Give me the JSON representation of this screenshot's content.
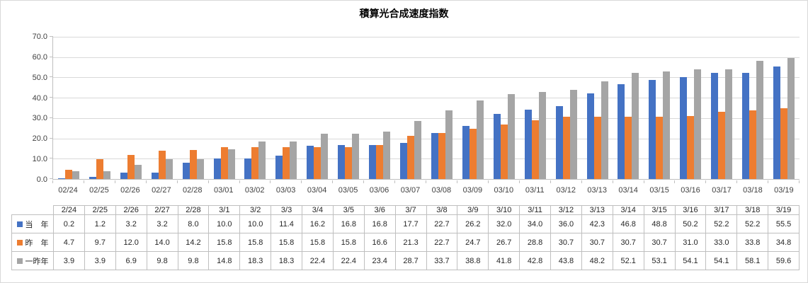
{
  "chart_data": {
    "type": "bar",
    "title": "積算光合成速度指数",
    "xlabel": "",
    "ylabel": "",
    "ylim": [
      0,
      70
    ],
    "y_tick_step": 10,
    "y_tick_labels": [
      "70.0",
      "60.0",
      "50.0",
      "40.0",
      "30.0",
      "20.0",
      "10.0",
      "0.0"
    ],
    "grid": true,
    "legend_position": "data-table-left",
    "categories": [
      "02/24",
      "02/25",
      "02/26",
      "02/27",
      "02/28",
      "03/01",
      "03/02",
      "03/03",
      "03/04",
      "03/05",
      "03/06",
      "03/07",
      "03/08",
      "03/09",
      "03/10",
      "03/11",
      "03/12",
      "03/13",
      "03/14",
      "03/15",
      "03/16",
      "03/17",
      "03/18",
      "03/19"
    ],
    "table_categories": [
      "2/24",
      "2/25",
      "2/26",
      "2/27",
      "2/28",
      "3/1",
      "3/2",
      "3/3",
      "3/4",
      "3/5",
      "3/6",
      "3/7",
      "3/8",
      "3/9",
      "3/10",
      "3/11",
      "3/12",
      "3/13",
      "3/14",
      "3/15",
      "3/16",
      "3/17",
      "3/18",
      "3/19"
    ],
    "series": [
      {
        "name": "当　年",
        "color": "#4472C4",
        "values": [
          0.2,
          1.2,
          3.2,
          3.2,
          8.0,
          10.0,
          10.0,
          11.4,
          16.2,
          16.8,
          16.8,
          17.7,
          22.7,
          26.2,
          32.0,
          34.0,
          36.0,
          42.3,
          46.8,
          48.8,
          50.2,
          52.2,
          52.2,
          55.5
        ]
      },
      {
        "name": "昨　年",
        "color": "#ED7D31",
        "values": [
          4.7,
          9.7,
          12.0,
          14.0,
          14.2,
          15.8,
          15.8,
          15.8,
          15.8,
          15.8,
          16.6,
          21.3,
          22.7,
          24.7,
          26.7,
          28.8,
          30.7,
          30.7,
          30.7,
          30.7,
          31.0,
          33.0,
          33.8,
          34.8
        ]
      },
      {
        "name": "一昨年",
        "color": "#A5A5A5",
        "values": [
          3.9,
          3.9,
          6.9,
          9.8,
          9.8,
          14.8,
          18.3,
          18.3,
          22.4,
          22.4,
          23.4,
          28.7,
          33.7,
          38.8,
          41.8,
          42.8,
          43.8,
          48.2,
          52.1,
          53.1,
          54.1,
          54.1,
          58.1,
          59.6
        ]
      }
    ]
  },
  "colors": {
    "gridline": "#D9D9D9",
    "axis_line": "#BFBFBF",
    "table_border": "#BFBFBF",
    "axis_text": "#404040",
    "chart_border": "#D9D9D9"
  }
}
